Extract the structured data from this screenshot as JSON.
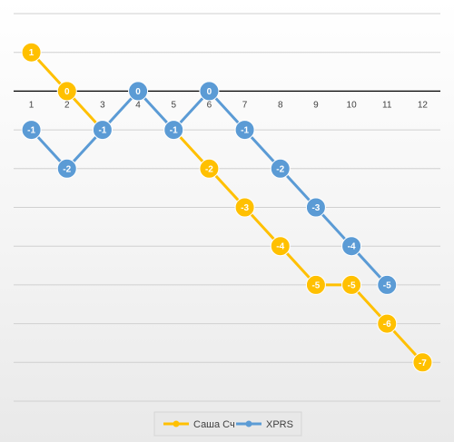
{
  "chart_data": {
    "type": "line",
    "categories": [
      "1",
      "2",
      "3",
      "4",
      "5",
      "6",
      "7",
      "8",
      "9",
      "10",
      "11",
      "12"
    ],
    "ylim": [
      -8,
      2
    ],
    "y_step": 1,
    "grid": true,
    "legend_position": "bottom",
    "series": [
      {
        "name": "Саша Сч",
        "color": "#FFC000",
        "values": [
          1,
          0,
          -1,
          null,
          -1,
          -2,
          -3,
          -4,
          -5,
          -5,
          -6,
          -7
        ]
      },
      {
        "name": "XPRS",
        "color": "#5B9BD5",
        "values": [
          -1,
          -2,
          -1,
          0,
          -1,
          0,
          -1,
          -2,
          -3,
          -4,
          -5,
          null
        ]
      }
    ]
  }
}
